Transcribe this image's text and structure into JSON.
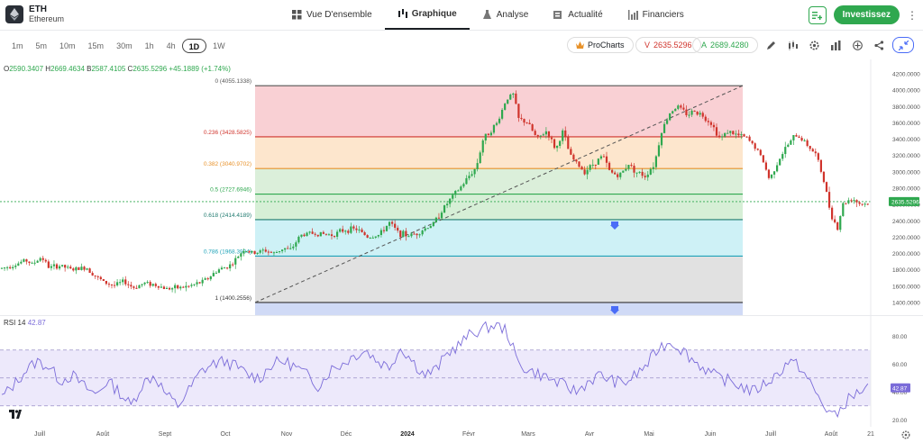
{
  "asset": {
    "symbol": "ETH",
    "name": "Ethereum"
  },
  "nav": {
    "tabs": [
      {
        "label": "Vue D'ensemble",
        "icon": "grid-icon"
      },
      {
        "label": "Graphique",
        "icon": "chart-icon"
      },
      {
        "label": "Analyse",
        "icon": "flask-icon"
      },
      {
        "label": "Actualité",
        "icon": "news-icon"
      },
      {
        "label": "Financiers",
        "icon": "bars-icon"
      }
    ],
    "active_tab": "Graphique",
    "invest_label": "Investissez"
  },
  "timeframes": [
    "1m",
    "5m",
    "10m",
    "15m",
    "30m",
    "1h",
    "4h",
    "1D",
    "1W"
  ],
  "active_timeframe": "1D",
  "procharts_label": "ProCharts",
  "sell": {
    "letter": "V",
    "price": "2635.5296"
  },
  "buy": {
    "letter": "A",
    "price": "2689.4280"
  },
  "ohlc": {
    "o_label": "O",
    "o": "2590.3407",
    "h_label": "H",
    "h": "2669.4634",
    "b_label": "B",
    "b": "2587.4105",
    "c_label": "C",
    "c": "2635.5296",
    "change": "+45.1889 (+1.74%)"
  },
  "colors": {
    "up": "#2fa84f",
    "down": "#d0342c",
    "rsi": "#7b6cd9",
    "accent": "#4a6cf7"
  },
  "chart_data": [
    {
      "type": "candlestick",
      "price_axis": [
        "4200.0000",
        "4000.0000",
        "3800.0000",
        "3600.0000",
        "3400.0000",
        "3200.0000",
        "3000.0000",
        "2800.0000",
        "2600.0000",
        "2400.0000",
        "2200.0000",
        "2000.0000",
        "1800.0000",
        "1600.0000",
        "1400.0000"
      ],
      "ylim": [
        1350,
        4250
      ],
      "last_price_label": "2635.5296",
      "last_price": 2635.53,
      "x_labels": [
        "Juill",
        "Août",
        "Sept",
        "Oct",
        "Nov",
        "Déc",
        "2024",
        "Févr",
        "Mars",
        "Avr",
        "Mai",
        "Juin",
        "Juill",
        "Août",
        "21"
      ],
      "fib_levels": [
        {
          "label": "0 (4055.1338)",
          "value": 4055.13,
          "color": "#555555",
          "fill": "#f8c8cc"
        },
        {
          "label": "0.236 (3428.5825)",
          "value": 3428.58,
          "color": "#d0342c",
          "fill": "#fde2c4"
        },
        {
          "label": "0.382 (3040.9702)",
          "value": 3040.97,
          "color": "#e8922a",
          "fill": "#d5ecd3"
        },
        {
          "label": "0.5 (2727.6946)",
          "value": 2727.69,
          "color": "#2fa84f",
          "fill": "#cfeccf"
        },
        {
          "label": "0.618 (2414.4189)",
          "value": 2414.42,
          "color": "#1f7a6f",
          "fill": "#c6eef5"
        },
        {
          "label": "0.786 (1968.3994)",
          "value": 1968.4,
          "color": "#1fa3b8",
          "fill": "#dcdcdc"
        },
        {
          "label": "1 (1400.2556)",
          "value": 1400.26,
          "color": "#333333",
          "fill": "#c8d4f5"
        }
      ],
      "trend_key_points": [
        [
          0,
          1820
        ],
        [
          8,
          1850
        ],
        [
          14,
          1880
        ],
        [
          20,
          1920
        ],
        [
          26,
          1870
        ],
        [
          34,
          1960
        ],
        [
          40,
          1830
        ],
        [
          50,
          1850
        ],
        [
          60,
          1800
        ],
        [
          72,
          1830
        ],
        [
          80,
          1720
        ],
        [
          88,
          1640
        ],
        [
          96,
          1610
        ],
        [
          104,
          1660
        ],
        [
          112,
          1580
        ],
        [
          122,
          1640
        ],
        [
          130,
          1620
        ],
        [
          140,
          1570
        ],
        [
          150,
          1580
        ],
        [
          160,
          1600
        ],
        [
          170,
          1650
        ],
        [
          176,
          1700
        ],
        [
          184,
          1800
        ],
        [
          190,
          1830
        ],
        [
          196,
          1870
        ],
        [
          206,
          2050
        ],
        [
          214,
          2000
        ],
        [
          224,
          2040
        ],
        [
          232,
          2000
        ],
        [
          240,
          2070
        ],
        [
          246,
          2040
        ],
        [
          254,
          2220
        ],
        [
          262,
          2250
        ],
        [
          272,
          2240
        ],
        [
          282,
          2230
        ],
        [
          292,
          2290
        ],
        [
          302,
          2300
        ],
        [
          312,
          2200
        ],
        [
          322,
          2230
        ],
        [
          330,
          2380
        ],
        [
          338,
          2250
        ],
        [
          346,
          2220
        ],
        [
          354,
          2250
        ],
        [
          362,
          2320
        ],
        [
          368,
          2370
        ],
        [
          376,
          2550
        ],
        [
          384,
          2700
        ],
        [
          392,
          2830
        ],
        [
          398,
          2950
        ],
        [
          404,
          3050
        ],
        [
          410,
          3400
        ],
        [
          416,
          3500
        ],
        [
          422,
          3600
        ],
        [
          430,
          3900
        ],
        [
          436,
          3950
        ],
        [
          440,
          3650
        ],
        [
          448,
          3600
        ],
        [
          456,
          3400
        ],
        [
          464,
          3500
        ],
        [
          472,
          3270
        ],
        [
          478,
          3500
        ],
        [
          484,
          3200
        ],
        [
          490,
          3100
        ],
        [
          496,
          3000
        ],
        [
          504,
          3100
        ],
        [
          512,
          3200
        ],
        [
          518,
          3000
        ],
        [
          526,
          2950
        ],
        [
          534,
          3100
        ],
        [
          540,
          3000
        ],
        [
          548,
          2950
        ],
        [
          556,
          3100
        ],
        [
          562,
          3500
        ],
        [
          570,
          3750
        ],
        [
          576,
          3800
        ],
        [
          584,
          3700
        ],
        [
          590,
          3750
        ],
        [
          596,
          3700
        ],
        [
          604,
          3600
        ],
        [
          612,
          3400
        ],
        [
          618,
          3500
        ],
        [
          626,
          3450
        ],
        [
          634,
          3420
        ],
        [
          642,
          3300
        ],
        [
          648,
          3150
        ],
        [
          654,
          2900
        ],
        [
          660,
          3100
        ],
        [
          668,
          3300
        ],
        [
          676,
          3450
        ],
        [
          682,
          3400
        ],
        [
          688,
          3300
        ],
        [
          694,
          3200
        ],
        [
          700,
          2900
        ],
        [
          706,
          2500
        ],
        [
          712,
          2300
        ],
        [
          716,
          2600
        ],
        [
          724,
          2680
        ],
        [
          732,
          2600
        ],
        [
          740,
          2620
        ]
      ],
      "extra_trend": {
        "segment_break_cx": [
          826
        ],
        "note": ""
      }
    },
    {
      "type": "line",
      "title": "RSI 14",
      "value_label": "42.87",
      "ylim": [
        15,
        95
      ],
      "y_axis": [
        "80.00",
        "60.00",
        "40.00",
        "20.00"
      ],
      "bands": [
        70,
        50,
        30
      ],
      "points": [
        [
          0,
          36
        ],
        [
          10,
          45
        ],
        [
          20,
          55
        ],
        [
          30,
          62
        ],
        [
          40,
          58
        ],
        [
          50,
          48
        ],
        [
          60,
          52
        ],
        [
          70,
          44
        ],
        [
          80,
          38
        ],
        [
          90,
          48
        ],
        [
          100,
          40
        ],
        [
          110,
          30
        ],
        [
          120,
          46
        ],
        [
          130,
          52
        ],
        [
          140,
          38
        ],
        [
          150,
          30
        ],
        [
          160,
          42
        ],
        [
          170,
          55
        ],
        [
          180,
          60
        ],
        [
          190,
          62
        ],
        [
          200,
          58
        ],
        [
          210,
          52
        ],
        [
          220,
          50
        ],
        [
          230,
          60
        ],
        [
          240,
          62
        ],
        [
          250,
          58
        ],
        [
          260,
          52
        ],
        [
          270,
          44
        ],
        [
          280,
          56
        ],
        [
          290,
          60
        ],
        [
          300,
          66
        ],
        [
          310,
          70
        ],
        [
          320,
          62
        ],
        [
          330,
          58
        ],
        [
          340,
          72
        ],
        [
          350,
          62
        ],
        [
          360,
          52
        ],
        [
          370,
          56
        ],
        [
          380,
          68
        ],
        [
          390,
          74
        ],
        [
          400,
          82
        ],
        [
          410,
          85
        ],
        [
          420,
          88
        ],
        [
          430,
          84
        ],
        [
          440,
          60
        ],
        [
          450,
          55
        ],
        [
          460,
          52
        ],
        [
          470,
          48
        ],
        [
          480,
          44
        ],
        [
          490,
          40
        ],
        [
          500,
          48
        ],
        [
          510,
          52
        ],
        [
          520,
          48
        ],
        [
          530,
          46
        ],
        [
          540,
          52
        ],
        [
          550,
          60
        ],
        [
          560,
          72
        ],
        [
          570,
          76
        ],
        [
          580,
          70
        ],
        [
          590,
          62
        ],
        [
          600,
          56
        ],
        [
          610,
          50
        ],
        [
          620,
          48
        ],
        [
          630,
          44
        ],
        [
          640,
          40
        ],
        [
          650,
          46
        ],
        [
          660,
          52
        ],
        [
          670,
          62
        ],
        [
          680,
          58
        ],
        [
          690,
          44
        ],
        [
          700,
          30
        ],
        [
          710,
          22
        ],
        [
          720,
          34
        ],
        [
          730,
          40
        ],
        [
          740,
          43
        ]
      ]
    }
  ]
}
